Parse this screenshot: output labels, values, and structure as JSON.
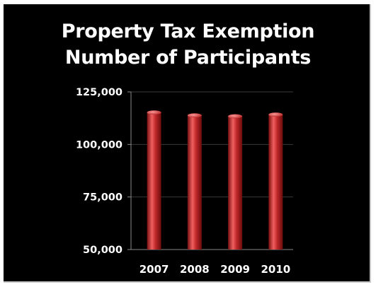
{
  "chart_data": {
    "type": "bar",
    "title": "Property Tax Exemption",
    "subtitle": "Number of Participants",
    "xlabel": "",
    "ylabel": "",
    "categories": [
      "2007",
      "2008",
      "2009",
      "2010"
    ],
    "values": [
      115200,
      113800,
      113400,
      114200
    ],
    "ylim": [
      50000,
      125000
    ],
    "yticks": [
      50000,
      75000,
      100000,
      125000
    ],
    "ytick_labels": [
      "50,000",
      "75,000",
      "100,000",
      "125,000"
    ],
    "grid": true,
    "legend": "none",
    "colors": {
      "bar": "#c0282a",
      "bar_highlight": "#f06060",
      "bar_shadow": "#7a1010",
      "background": "#000000",
      "grid": "#3a3a3a",
      "text": "#ffffff"
    }
  }
}
